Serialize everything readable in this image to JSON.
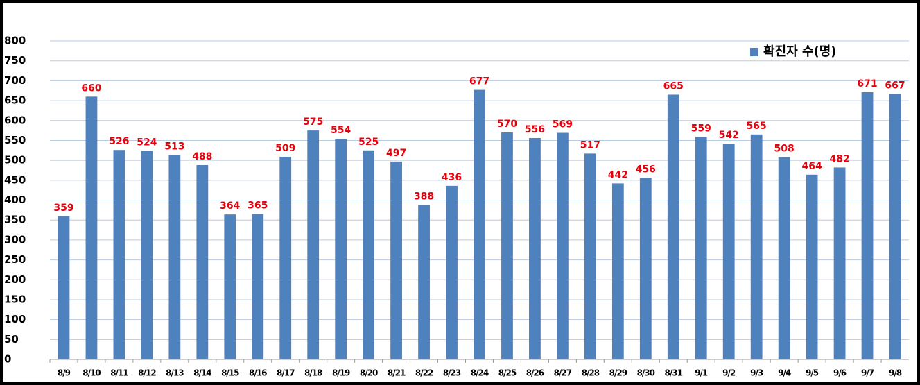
{
  "chart_data": {
    "type": "bar",
    "categories": [
      "8/9",
      "8/10",
      "8/11",
      "8/12",
      "8/13",
      "8/14",
      "8/15",
      "8/16",
      "8/17",
      "8/18",
      "8/19",
      "8/20",
      "8/21",
      "8/22",
      "8/23",
      "8/24",
      "8/25",
      "8/26",
      "8/27",
      "8/28",
      "8/29",
      "8/30",
      "8/31",
      "9/1",
      "9/2",
      "9/3",
      "9/4",
      "9/5",
      "9/6",
      "9/7",
      "9/8"
    ],
    "series": [
      {
        "name": "확진자 수(명)",
        "color": "#4f81bd",
        "label_color": "#e8000b",
        "values": [
          359,
          660,
          526,
          524,
          513,
          488,
          364,
          365,
          509,
          575,
          554,
          525,
          497,
          388,
          436,
          677,
          570,
          556,
          569,
          517,
          442,
          456,
          665,
          559,
          542,
          565,
          508,
          464,
          482,
          671,
          667
        ]
      }
    ],
    "ylim": [
      0,
      800
    ],
    "yticks": [
      0,
      50,
      100,
      150,
      200,
      250,
      300,
      350,
      400,
      450,
      500,
      550,
      600,
      650,
      700,
      750,
      800
    ],
    "grid": true,
    "legend": "top-right",
    "data_labels": true
  }
}
